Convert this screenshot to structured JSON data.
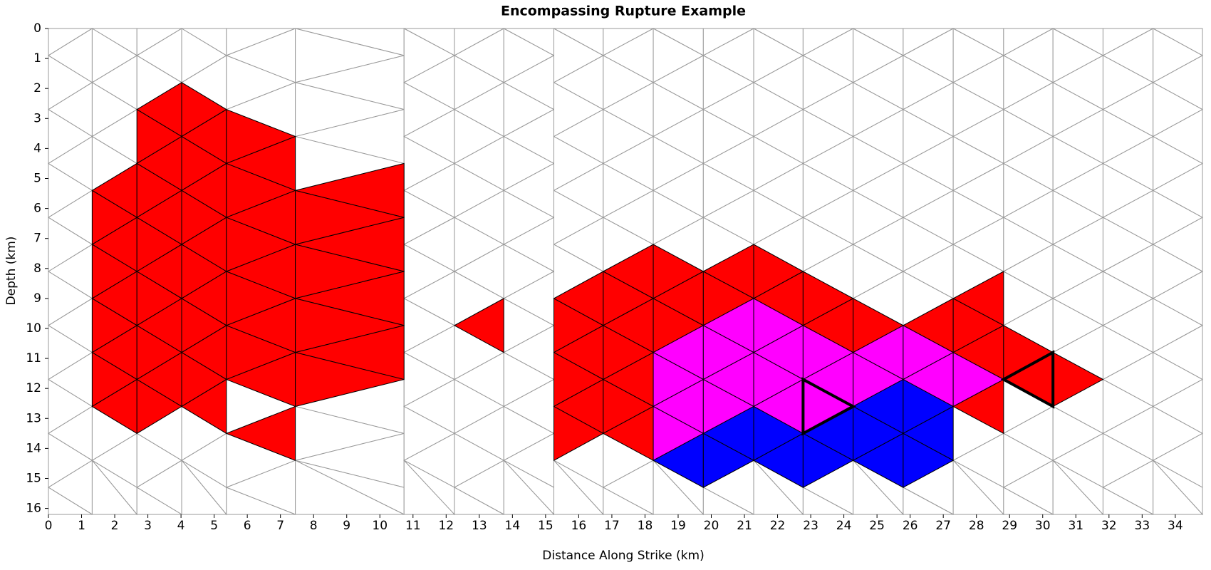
{
  "chart_data": {
    "type": "triangle-mesh",
    "title": "Encompassing Rupture Example",
    "xlabel": "Distance Along Strike (km)",
    "ylabel": "Depth (km)",
    "xlim": [
      0,
      34.82
    ],
    "ylim": [
      0,
      16.2
    ],
    "invert_y": true,
    "xticks": [
      0,
      1,
      2,
      3,
      4,
      5,
      6,
      7,
      8,
      9,
      10,
      11,
      12,
      13,
      14,
      15,
      16,
      17,
      18,
      19,
      20,
      21,
      22,
      23,
      24,
      25,
      26,
      27,
      28,
      29,
      30,
      31,
      32,
      33,
      34
    ],
    "yticks": [
      0,
      1,
      2,
      3,
      4,
      5,
      6,
      7,
      8,
      9,
      10,
      11,
      12,
      13,
      14,
      15,
      16
    ],
    "node_spacing": 1.8,
    "mesh_color": "#999999",
    "sections": [
      {
        "lines": [
          0,
          1.32,
          2.67,
          4.02,
          5.37,
          7.45,
          10.73
        ],
        "offsets": [
          0.9,
          1.8,
          0.9,
          1.8,
          0.9,
          1.8,
          0.9
        ]
      },
      {
        "lines": [
          10.73,
          12.25,
          13.74,
          15.25
        ],
        "offsets": [
          1.8,
          0.9,
          1.8,
          0.9
        ]
      },
      {
        "lines": [
          15.25,
          16.74,
          18.25,
          19.76,
          21.28,
          22.77,
          24.28,
          25.79,
          27.3,
          28.82,
          30.31,
          31.82,
          33.33,
          34.82
        ],
        "offsets": [
          1.8,
          0.9,
          1.8,
          0.9,
          1.8,
          0.9,
          1.8,
          0.9,
          1.8,
          0.9,
          1.8,
          0.9,
          1.8,
          0.9
        ]
      }
    ],
    "series": [
      {
        "color": "#ff0000",
        "triangles": [
          [
            0,
            1,
            [
              6,
              7,
              8,
              9,
              10,
              11,
              12,
              13,
              14
            ]
          ],
          [
            0,
            2,
            [
              3,
              4,
              5,
              6,
              7,
              8,
              9,
              10,
              11,
              12,
              13,
              14
            ]
          ],
          [
            0,
            3,
            [
              3,
              4,
              5,
              6,
              7,
              8,
              9,
              10,
              11,
              12,
              13,
              14
            ]
          ],
          [
            0,
            4,
            [
              4,
              5,
              6,
              7,
              8,
              9,
              10,
              11,
              12,
              13,
              15
            ]
          ],
          [
            0,
            5,
            [
              6,
              7,
              8,
              9,
              10,
              11,
              12,
              13
            ]
          ],
          [
            1,
            1,
            [
              11
            ]
          ],
          [
            2,
            0,
            [
              10,
              11,
              12,
              13,
              14,
              15
            ]
          ],
          [
            2,
            1,
            [
              9,
              10,
              11,
              12,
              13,
              14,
              15
            ]
          ],
          [
            2,
            2,
            [
              9,
              10,
              11
            ]
          ],
          [
            2,
            3,
            [
              9,
              10
            ]
          ],
          [
            2,
            4,
            [
              9,
              10
            ]
          ],
          [
            2,
            5,
            [
              10,
              11
            ]
          ],
          [
            2,
            6,
            [
              11
            ]
          ],
          [
            2,
            7,
            [
              11
            ]
          ],
          [
            2,
            8,
            [
              10,
              11,
              12,
              14
            ]
          ],
          [
            2,
            9,
            [
              12,
              13
            ]
          ],
          [
            2,
            10,
            [
              13
            ]
          ]
        ]
      },
      {
        "color": "#ff00ff",
        "triangles": [
          [
            2,
            2,
            [
              12,
              13,
              14,
              15
            ]
          ],
          [
            2,
            3,
            [
              11,
              12,
              13,
              14
            ]
          ],
          [
            2,
            4,
            [
              11,
              12,
              13,
              14
            ]
          ],
          [
            2,
            5,
            [
              12,
              13,
              14
            ]
          ],
          [
            2,
            6,
            [
              12,
              13
            ]
          ],
          [
            2,
            7,
            [
              12,
              13
            ]
          ],
          [
            2,
            8,
            [
              13
            ]
          ]
        ]
      },
      {
        "color": "#0000ff",
        "triangles": [
          [
            2,
            2,
            [
              16
            ]
          ],
          [
            2,
            3,
            [
              15,
              16
            ]
          ],
          [
            2,
            4,
            [
              15,
              16
            ]
          ],
          [
            2,
            5,
            [
              15,
              16
            ]
          ],
          [
            2,
            6,
            [
              14,
              15,
              16
            ]
          ],
          [
            2,
            7,
            [
              14,
              15,
              16
            ]
          ]
        ]
      }
    ],
    "outlined": {
      "color": "#000000",
      "triangles": [
        [
          2,
          5,
          14
        ],
        [
          2,
          9,
          13
        ]
      ]
    }
  }
}
